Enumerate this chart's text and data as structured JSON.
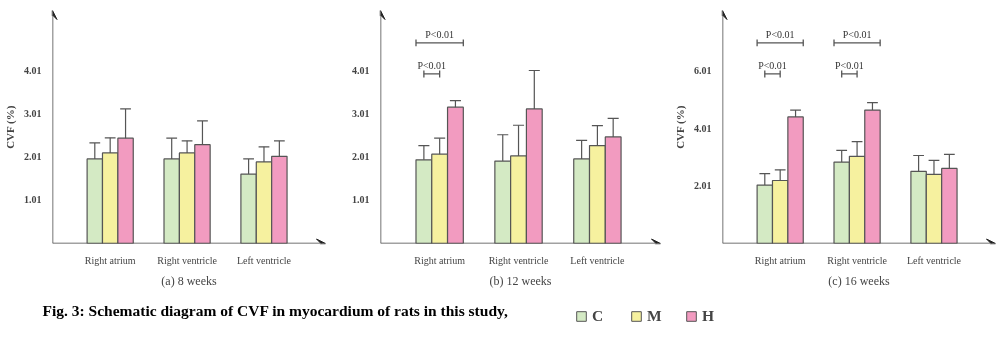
{
  "chart_data": [
    {
      "type": "bar",
      "xlabel": "(a) 8 weeks",
      "ylabel": "CVF (%)",
      "categories": [
        "Right atrium",
        "Right ventricle",
        "Left ventricle"
      ],
      "ylim": [
        0,
        5.4
      ],
      "yticks": [
        1.01,
        2.01,
        3.01,
        4.01
      ],
      "legend": "bottom",
      "annotations": [
        "Fig. 3: Schematic diagram of CVF in myocardium of rats in this study,"
      ],
      "series": [
        {
          "name": "C",
          "color": "#d4eac4",
          "values": [
            1.96,
            1.96,
            1.61
          ],
          "errors": [
            [
              1.96,
              2.33
            ],
            [
              1.96,
              2.44
            ],
            [
              1.61,
              1.96
            ]
          ]
        },
        {
          "name": "M",
          "color": "#f6f19f",
          "values": [
            2.1,
            2.1,
            1.89
          ],
          "errors": [
            [
              2.1,
              2.45
            ],
            [
              2.1,
              2.38
            ],
            [
              1.89,
              2.24
            ]
          ]
        },
        {
          "name": "H",
          "color": "#f29bc0",
          "values": [
            2.44,
            2.29,
            2.02
          ],
          "errors": [
            [
              2.44,
              3.12
            ],
            [
              2.29,
              2.84
            ],
            [
              2.02,
              2.38
            ]
          ]
        }
      ]
    },
    {
      "type": "bar",
      "xlabel": "(b) 12 weeks",
      "categories": [
        "Right atrium",
        "Right ventricle",
        "Left ventricle"
      ],
      "ylim": [
        0,
        5.4
      ],
      "yticks": [
        1.01,
        2.01,
        3.01,
        4.01
      ],
      "annotations": [
        "P<0.01",
        "P<0.01"
      ],
      "series": [
        {
          "color": "#d4eac4",
          "values": [
            1.94,
            1.91,
            1.96
          ],
          "errors": [
            [
              1.94,
              2.27
            ],
            [
              1.91,
              2.52
            ],
            [
              1.96,
              2.39
            ]
          ]
        },
        {
          "color": "#f6f19f",
          "values": [
            2.07,
            2.03,
            2.27
          ],
          "errors": [
            [
              2.07,
              2.44
            ],
            [
              2.03,
              2.74
            ],
            [
              2.27,
              2.73
            ]
          ]
        },
        {
          "color": "#f29bc0",
          "values": [
            3.16,
            3.12,
            2.47
          ],
          "errors": [
            [
              3.16,
              3.31
            ],
            [
              3.12,
              4.01
            ],
            [
              2.47,
              2.9
            ]
          ]
        }
      ]
    },
    {
      "type": "bar",
      "xlabel": "(c) 16 weeks",
      "ylabel": "CVF (%)",
      "categories": [
        "Right atrium",
        "Right ventricle",
        "Left ventricle"
      ],
      "ylim": [
        0,
        8.1
      ],
      "yticks": [
        2.01,
        4.01,
        6.01
      ],
      "annotations": [
        "P<0.01",
        "P<0.01",
        "P<0.01",
        "P<0.01"
      ],
      "series": [
        {
          "color": "#d4eac4",
          "values": [
            2.03,
            2.83,
            2.51
          ],
          "errors": [
            [
              2.03,
              2.43
            ],
            [
              2.83,
              3.24
            ],
            [
              2.51,
              3.06
            ]
          ]
        },
        {
          "color": "#f6f19f",
          "values": [
            2.19,
            3.03,
            2.4
          ],
          "errors": [
            [
              2.19,
              2.56
            ],
            [
              3.03,
              3.54
            ],
            [
              2.4,
              2.89
            ]
          ]
        },
        {
          "color": "#f29bc0",
          "values": [
            4.4,
            4.64,
            2.61
          ],
          "errors": [
            [
              4.4,
              4.64
            ],
            [
              4.64,
              4.9
            ],
            [
              2.61,
              3.1
            ]
          ]
        }
      ]
    }
  ]
}
